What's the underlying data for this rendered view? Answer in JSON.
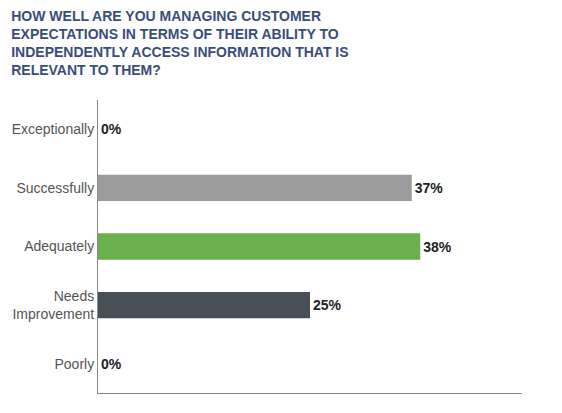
{
  "chart_data": {
    "type": "bar",
    "orientation": "horizontal",
    "title": "HOW WELL ARE YOU MANAGING CUSTOMER\nEXPECTATIONS IN TERMS OF THEIR ABILITY TO\nINDEPENDENTLY ACCESS INFORMATION THAT IS\nRELEVANT TO THEM?",
    "categories": [
      "Exceptionally",
      "Successfully",
      "Adequately",
      "Needs\nImprovement",
      "Poorly"
    ],
    "values": [
      0,
      37,
      38,
      25,
      0
    ],
    "value_labels": [
      "0%",
      "37%",
      "38%",
      "25%",
      "0%"
    ],
    "colors": [
      "#aaaaaa",
      "#9b9b9b",
      "#6ab04c",
      "#484f55",
      "#aaaaaa"
    ],
    "xlim": [
      0,
      50
    ],
    "data_labels": true,
    "tick_labels": "y",
    "grid": false
  }
}
